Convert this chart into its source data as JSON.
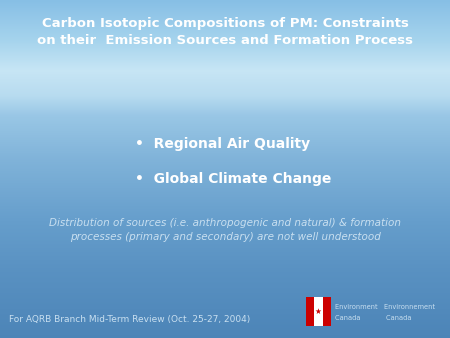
{
  "title_line1": "Carbon Isotopic Compositions of PM: Constraints",
  "title_line2": "on their  Emission Sources and Formation Process",
  "bullet1": "Regional Air Quality",
  "bullet2": "Global Climate Change",
  "body_text_line1": "Distribution of sources (i.e. anthropogenic and natural) & formation",
  "body_text_line2": "processes (primary and secondary) are not well understood",
  "footer_text": "For AQRB Branch Mid-Term Review (Oct. 25-27, 2004)",
  "env_text1": "Environment   Environnement",
  "env_text2": "Canada            Canada",
  "text_color_white": "#ffffff",
  "text_color_light": "#c8dff0",
  "title_fontsize": 9.5,
  "bullet_fontsize": 10.0,
  "body_fontsize": 7.5,
  "footer_fontsize": 6.5
}
